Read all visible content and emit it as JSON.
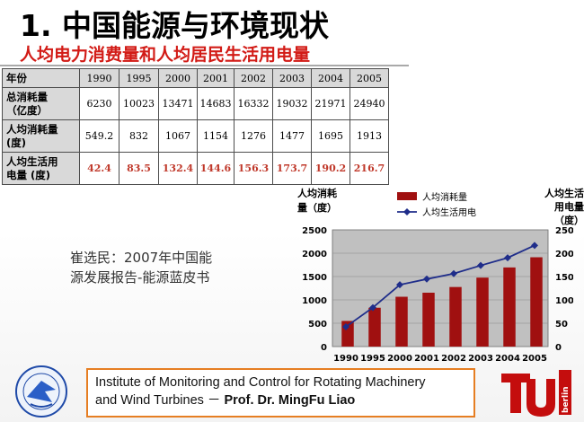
{
  "title": "1. 中国能源与环境现状",
  "subtitle": "人均电力消费量和人均居民生活用电量",
  "table": {
    "header": [
      "年份",
      "1990",
      "1995",
      "2000",
      "2001",
      "2002",
      "2003",
      "2004",
      "2005"
    ],
    "rows": [
      {
        "label_line1": "总消耗量",
        "label_line2": "（亿度）",
        "values": [
          "6230",
          "10023",
          "13471",
          "14683",
          "16332",
          "19032",
          "21971",
          "24940"
        ]
      },
      {
        "label_line1": "人均消耗量",
        "label_line2": "(度)",
        "values": [
          "549.2",
          "832",
          "1067",
          "1154",
          "1276",
          "1477",
          "1695",
          "1913"
        ]
      },
      {
        "label_line1": "人均生活用",
        "label_line2": "电量 (度)",
        "values": [
          "42.4",
          "83.5",
          "132.4",
          "144.6",
          "156.3",
          "173.7",
          "190.2",
          "216.7"
        ]
      }
    ]
  },
  "source": {
    "line1": "崔选民：2007年中国能",
    "line2": "源发展报告-能源蓝皮书"
  },
  "chart_data": {
    "type": "bar",
    "categories": [
      "1990",
      "1995",
      "2000",
      "2001",
      "2002",
      "2003",
      "2004",
      "2005"
    ],
    "series": [
      {
        "name": "人均消耗量",
        "type": "bar",
        "axis": "left",
        "values": [
          549.2,
          832,
          1067,
          1154,
          1276,
          1477,
          1695,
          1913
        ],
        "color": "#a01010"
      },
      {
        "name": "人均生活用电",
        "type": "line",
        "axis": "right",
        "values": [
          42.4,
          83.5,
          132.4,
          144.6,
          156.3,
          173.7,
          190.2,
          216.7
        ],
        "color": "#1f2d8a"
      }
    ],
    "ylabel_left_line1": "人均消耗",
    "ylabel_left_line2": "量（度）",
    "ylabel_right_line1": "人均生活",
    "ylabel_right_line2": "用电量",
    "ylabel_right_line3": "（度）",
    "ylim_left": [
      0,
      2500
    ],
    "yticks_left": [
      "0",
      "500",
      "1000",
      "1500",
      "2000",
      "2500"
    ],
    "ylim_right": [
      0,
      250
    ],
    "yticks_right": [
      "0",
      "50",
      "100",
      "150",
      "200",
      "250"
    ],
    "grid": true,
    "plot_background": "#c0c0c0",
    "legend_position": "top-right"
  },
  "footer": {
    "line1": "Institute of Monitoring and Control for Rotating Machinery",
    "line2_plain": "and Wind Turbines －",
    "line2_bold": "Prof. Dr. MingFu Liao"
  },
  "logo_right_text": "berlin"
}
